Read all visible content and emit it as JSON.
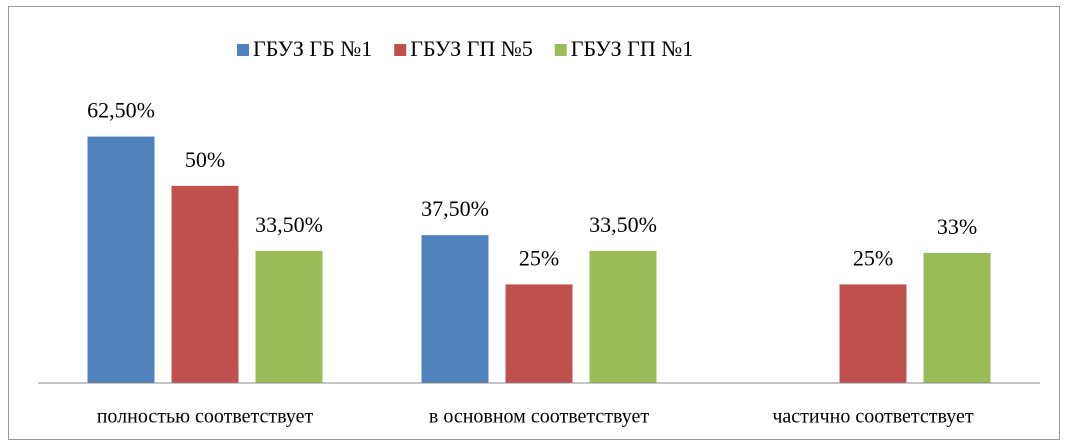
{
  "chart_data": {
    "type": "bar",
    "categories": [
      "полностью соответствует",
      "в основном соответствует",
      "частично соответствует"
    ],
    "series": [
      {
        "name": "ГБУЗ ГБ №1",
        "color": "#4f81bd",
        "values": [
          62.5,
          37.5,
          null
        ],
        "value_labels": [
          "62,50%",
          "37,50%",
          null
        ]
      },
      {
        "name": "ГБУЗ ГП №5",
        "color": "#c0504d",
        "values": [
          50,
          25,
          25
        ],
        "value_labels": [
          "50%",
          "25%",
          "25%"
        ]
      },
      {
        "name": "ГБУЗ ГП №1",
        "color": "#9bbb59",
        "values": [
          33.5,
          33.5,
          33
        ],
        "value_labels": [
          "33,50%",
          "33,50%",
          "33%"
        ]
      }
    ],
    "ylim": [
      0,
      70
    ],
    "legend": "top"
  }
}
